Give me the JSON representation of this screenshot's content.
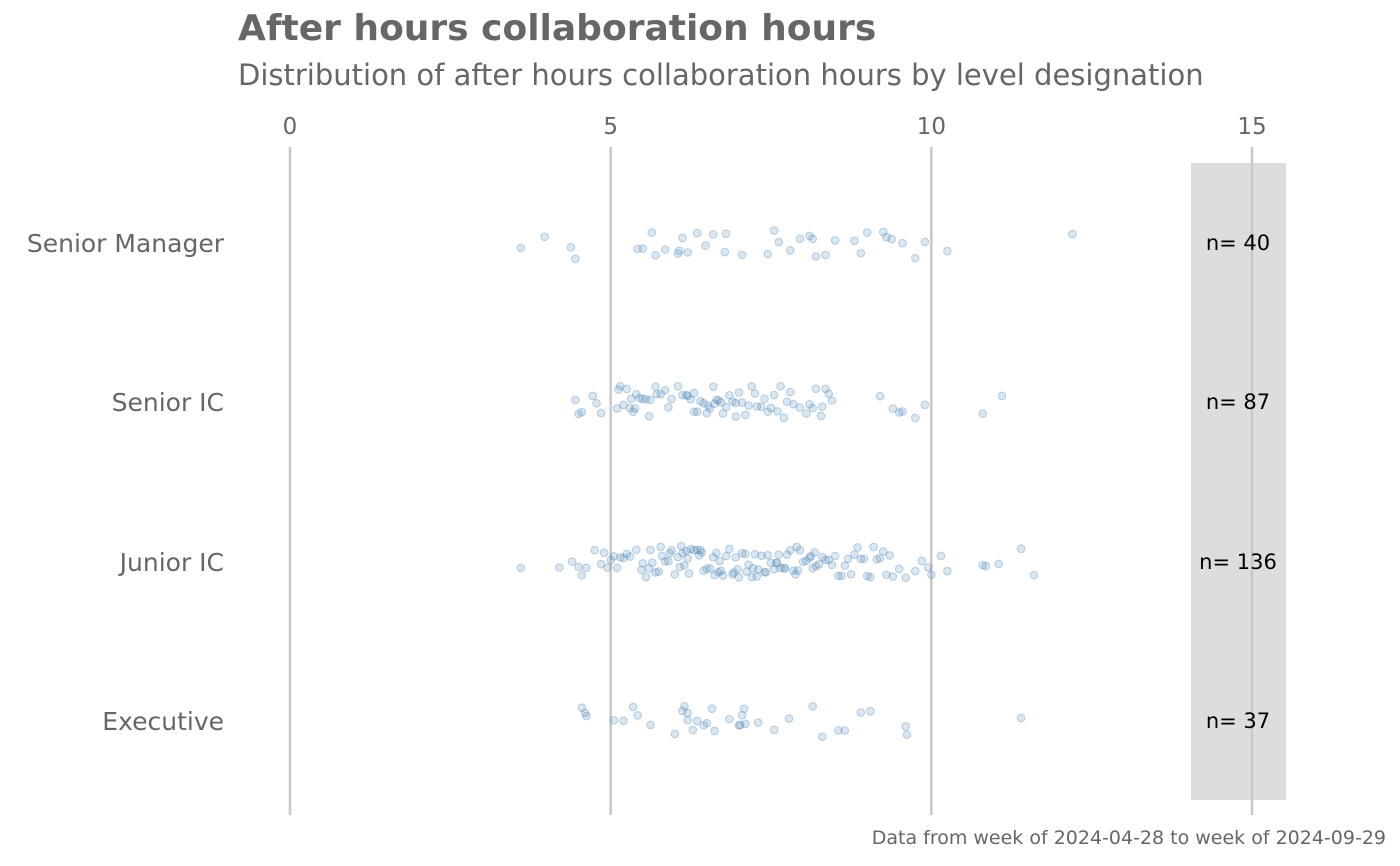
{
  "title": "After hours collaboration hours",
  "subtitle": "Distribution of after hours collaboration hours by level designation",
  "caption": "Data from week of 2024-04-28 to week of 2024-09-29",
  "colors": {
    "point": "#4682B4",
    "gridline": "#c8c8c8",
    "count_panel": "#dddddd",
    "text": "#666666"
  },
  "chart_data": {
    "type": "scatter",
    "title": "After hours collaboration hours",
    "subtitle": "Distribution of after hours collaboration hours by level designation",
    "xlabel": "",
    "ylabel": "",
    "xlim": [
      0,
      15
    ],
    "x_ticks": [
      "0",
      "5",
      "10",
      "15"
    ],
    "x_tick_values": [
      0,
      5,
      10,
      15
    ],
    "axis_position": "top",
    "grid": "vertical",
    "categories": [
      "Senior Manager",
      "Senior IC",
      "Junior IC",
      "Executive"
    ],
    "counts": [
      "n= 40",
      "n= 87",
      "n= 136",
      "n= 37"
    ],
    "series": [
      {
        "category": "Senior Manager",
        "values": [
          3.6,
          3.97,
          4.38,
          4.45,
          5.42,
          5.5,
          5.64,
          5.7,
          5.85,
          6.05,
          6.07,
          6.12,
          6.2,
          6.35,
          6.48,
          6.6,
          6.8,
          6.78,
          7.05,
          7.45,
          7.55,
          7.62,
          7.8,
          7.95,
          8.1,
          8.15,
          8.2,
          8.35,
          8.5,
          8.8,
          8.9,
          9.0,
          9.25,
          9.3,
          9.38,
          9.55,
          9.75,
          9.9,
          10.25,
          12.2
        ]
      },
      {
        "category": "Senior IC",
        "values": [
          4.45,
          4.5,
          4.55,
          4.72,
          4.78,
          4.85,
          5.1,
          5.12,
          5.2,
          5.25,
          5.3,
          5.32,
          5.38,
          5.4,
          5.45,
          5.5,
          5.55,
          5.6,
          5.62,
          5.7,
          5.78,
          5.85,
          5.9,
          6.05,
          6.12,
          6.18,
          6.25,
          6.3,
          6.35,
          6.4,
          6.45,
          6.5,
          6.52,
          6.55,
          6.6,
          6.62,
          6.68,
          6.72,
          6.8,
          6.85,
          6.9,
          6.95,
          7.0,
          7.05,
          7.1,
          7.15,
          7.2,
          7.28,
          7.35,
          7.4,
          7.45,
          7.5,
          7.55,
          7.6,
          7.7,
          7.75,
          7.8,
          7.85,
          7.95,
          8.05,
          8.1,
          8.15,
          8.2,
          8.28,
          8.35,
          8.4,
          8.45,
          6.3,
          6.2,
          6.75,
          7.25,
          5.35,
          5.95,
          6.65,
          7.65,
          9.2,
          9.4,
          9.5,
          9.55,
          9.75,
          9.9,
          10.8,
          11.1,
          5.15,
          5.72,
          6.95,
          8.3
        ]
      },
      {
        "category": "Junior IC",
        "values": [
          3.6,
          4.2,
          4.4,
          4.5,
          4.55,
          4.62,
          4.75,
          4.85,
          4.9,
          4.95,
          5.0,
          5.05,
          5.1,
          5.15,
          5.2,
          5.25,
          5.3,
          5.4,
          5.5,
          5.55,
          5.6,
          5.65,
          5.7,
          5.75,
          5.8,
          5.85,
          5.9,
          5.95,
          6.0,
          6.05,
          6.1,
          6.15,
          6.2,
          6.25,
          6.3,
          6.35,
          6.4,
          6.45,
          6.5,
          6.55,
          6.6,
          6.65,
          6.7,
          6.75,
          6.8,
          6.85,
          6.9,
          6.95,
          7.0,
          7.05,
          7.1,
          7.15,
          7.2,
          7.25,
          7.3,
          7.35,
          7.4,
          7.45,
          7.5,
          7.55,
          7.6,
          7.65,
          7.7,
          7.75,
          7.8,
          7.85,
          7.9,
          7.95,
          8.0,
          8.05,
          8.1,
          8.15,
          8.2,
          8.25,
          8.3,
          8.35,
          8.4,
          8.45,
          8.5,
          8.55,
          8.6,
          8.65,
          8.7,
          8.75,
          8.8,
          8.85,
          8.9,
          8.95,
          9.0,
          9.05,
          9.1,
          9.15,
          9.2,
          9.25,
          9.3,
          9.35,
          9.4,
          9.5,
          9.6,
          9.75,
          9.85,
          9.95,
          10.0,
          10.15,
          10.25,
          10.8,
          10.85,
          11.05,
          11.4,
          11.6,
          5.48,
          5.78,
          6.08,
          6.38,
          6.68,
          6.98,
          7.28,
          7.58,
          7.88,
          8.18,
          5.62,
          6.12,
          6.62,
          7.12,
          7.62,
          8.12,
          6.22,
          6.72,
          7.22,
          7.72,
          6.42,
          6.92,
          7.42,
          7.92,
          5.92,
          6.18
        ]
      },
      {
        "category": "Executive",
        "values": [
          4.55,
          4.6,
          4.62,
          5.05,
          5.2,
          5.35,
          5.42,
          5.62,
          6.0,
          6.12,
          6.15,
          6.2,
          6.28,
          6.35,
          6.45,
          6.5,
          6.58,
          6.62,
          6.85,
          7.0,
          7.02,
          7.05,
          7.08,
          7.1,
          7.3,
          7.55,
          7.78,
          8.15,
          8.3,
          8.55,
          8.65,
          8.9,
          9.05,
          9.6,
          9.62,
          11.4,
          6.2
        ]
      }
    ]
  }
}
